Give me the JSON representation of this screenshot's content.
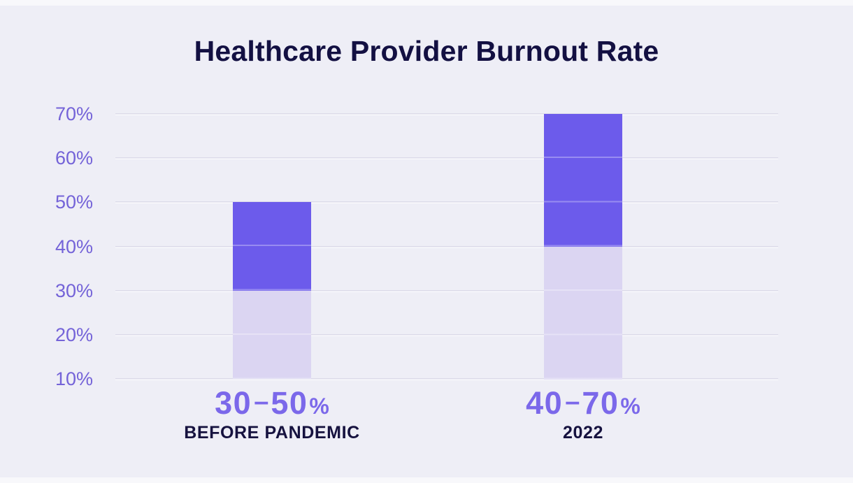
{
  "page": {
    "background": "#EEEEF6",
    "strip_color": "#F8F8FB"
  },
  "chart_data": {
    "type": "bar",
    "variant": "floating-range-columns",
    "title": "Healthcare Provider Burnout Rate",
    "categories": [
      "BEFORE PANDEMIC",
      "2022"
    ],
    "bars": [
      {
        "category": "BEFORE PANDEMIC",
        "range_label": "30–50%",
        "low": 30,
        "high": 50
      },
      {
        "category": "2022",
        "range_label": "40–70%",
        "low": 40,
        "high": 70
      }
    ],
    "y_ticks": [
      "70%",
      "60%",
      "50%",
      "40%",
      "30%",
      "20%",
      "10%"
    ],
    "y_tick_values": [
      70,
      60,
      50,
      40,
      30,
      20,
      10
    ],
    "ylim": [
      10,
      70
    ],
    "baseline": 10,
    "grid": true,
    "legend": "none",
    "dash_glyph": "–",
    "percent_glyph": "%",
    "colors": {
      "bar_dark": "#6C5BEB",
      "bar_light": "#DBD5F2",
      "grid_over_bar": "rgba(255,255,255,0.30)",
      "axis_label": "#7463D8",
      "range_label": "#7B68EA",
      "category_label": "#16123F",
      "title": "#131042",
      "gridline": "#DCDBE9",
      "gridline_highlight": "#FAFAFD",
      "background": "#EEEEF6"
    }
  }
}
